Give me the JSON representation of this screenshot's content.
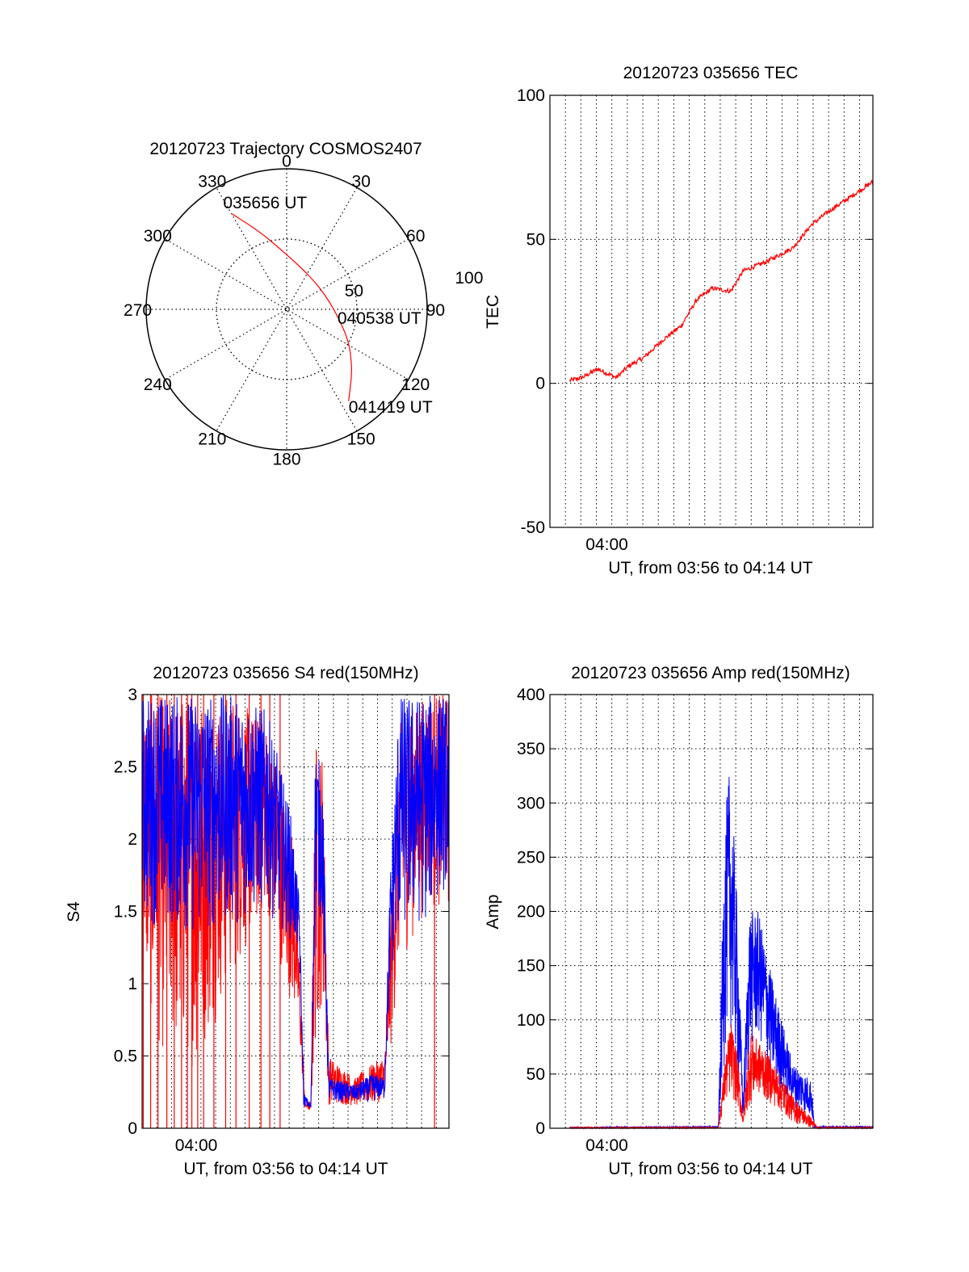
{
  "colors": {
    "red": "#ff0000",
    "blue": "#0000ff",
    "axis": "#000000",
    "grid": "#000000"
  },
  "chart_data": [
    {
      "id": "trajectory",
      "type": "polar",
      "title": "20120723 Trajectory COSMOS2407",
      "angle_labels": [
        "0",
        "30",
        "60",
        "90",
        "120",
        "150",
        "180",
        "210",
        "240",
        "270",
        "300",
        "330"
      ],
      "radius_labels": [
        "50",
        "100"
      ],
      "rlim": [
        0,
        90
      ],
      "grid": true,
      "series": [
        {
          "color": "red",
          "points": [
            {
              "az": 330,
              "zen": 71
            },
            {
              "az": 345,
              "zen": 47
            },
            {
              "az": 50,
              "zen": 25
            },
            {
              "az": 110,
              "zen": 39
            },
            {
              "az": 131,
              "zen": 55
            },
            {
              "az": 146,
              "zen": 71
            }
          ]
        }
      ],
      "annotations": [
        {
          "text": "035656 UT",
          "az": 330,
          "zen": 71
        },
        {
          "text": "040538 UT",
          "az": 110,
          "zen": 39
        },
        {
          "text": "041419 UT",
          "az": 146,
          "zen": 71
        }
      ]
    },
    {
      "id": "tec",
      "type": "line",
      "title": "20120723 035656 TEC",
      "xlabel": "UT, from 03:56 to 04:14 UT",
      "ylabel": "TEC",
      "xlim": [
        "03:56:56",
        "04:14:19"
      ],
      "ylim": [
        -50,
        100
      ],
      "yticks": [
        "-50",
        "0",
        "50",
        "100"
      ],
      "xticks": [
        {
          "label": "04:00",
          "time": "04:00:00"
        }
      ],
      "grid": true,
      "series": [
        {
          "color": "red",
          "points": [
            [
              "03:58:00",
              1
            ],
            [
              "03:58:40",
              2
            ],
            [
              "03:59:30",
              5
            ],
            [
              "04:00:30",
              2
            ],
            [
              "04:01:10",
              6
            ],
            [
              "04:02:00",
              9
            ],
            [
              "04:03:00",
              15
            ],
            [
              "04:04:00",
              20
            ],
            [
              "04:04:50",
              29
            ],
            [
              "04:05:40",
              33
            ],
            [
              "04:06:40",
              32
            ],
            [
              "04:07:20",
              39
            ],
            [
              "04:08:30",
              42
            ],
            [
              "04:10:00",
              47
            ],
            [
              "04:11:00",
              55
            ],
            [
              "04:12:00",
              60
            ],
            [
              "04:13:10",
              65
            ],
            [
              "04:14:19",
              70
            ]
          ]
        }
      ]
    },
    {
      "id": "s4",
      "type": "line",
      "title": "20120723 035656 S4 red(150MHz)",
      "xlabel": "UT, from 03:56 to 04:14 UT",
      "ylabel": "S4",
      "xlim": [
        "03:56:56",
        "04:14:19"
      ],
      "ylim": [
        0,
        3
      ],
      "yticks": [
        "0",
        "0.5",
        "1",
        "1.5",
        "2",
        "2.5",
        "3"
      ],
      "xticks": [
        {
          "label": "04:00",
          "time": "04:00:00"
        }
      ],
      "grid": true,
      "series": [
        {
          "color": "red",
          "envelope": [
            [
              "03:56:56",
              1.0,
              3.0
            ],
            [
              "03:58:00",
              0.5,
              3.0
            ],
            [
              "04:00:00",
              0.4,
              3.0
            ],
            [
              "04:02:00",
              1.0,
              3.0
            ],
            [
              "04:04:00",
              1.5,
              2.8
            ],
            [
              "04:05:30",
              0.8,
              2.0
            ],
            [
              "04:05:50",
              0.6,
              1.2
            ],
            [
              "04:06:10",
              0.11,
              0.2
            ],
            [
              "04:06:30",
              0.12,
              0.18
            ],
            [
              "04:06:45",
              0.5,
              2.7
            ],
            [
              "04:07:10",
              0.9,
              2.6
            ],
            [
              "04:07:30",
              0.16,
              0.5
            ],
            [
              "04:09:00",
              0.15,
              0.35
            ],
            [
              "04:10:00",
              0.15,
              0.45
            ],
            [
              "04:10:40",
              0.2,
              0.5
            ],
            [
              "04:11:00",
              0.5,
              1.5
            ],
            [
              "04:11:30",
              1.1,
              2.8
            ],
            [
              "04:13:00",
              1.5,
              3.0
            ],
            [
              "04:14:19",
              1.5,
              3.0
            ]
          ],
          "dropouts": [
            "03:57:00",
            "03:57:25",
            "03:57:50",
            "03:58:20",
            "03:58:45",
            "03:59:10",
            "03:59:30",
            "03:59:45",
            "04:00:05",
            "04:00:25",
            "04:01:00",
            "04:01:40",
            "04:02:15",
            "04:03:00",
            "04:03:40",
            "04:04:10",
            "04:04:45",
            "04:13:30"
          ]
        },
        {
          "color": "blue",
          "envelope": [
            [
              "03:56:56",
              1.4,
              3.0
            ],
            [
              "03:58:00",
              1.4,
              3.0
            ],
            [
              "04:00:00",
              1.3,
              3.0
            ],
            [
              "04:02:00",
              1.4,
              3.0
            ],
            [
              "04:04:00",
              1.5,
              2.9
            ],
            [
              "04:05:20",
              1.3,
              2.2
            ],
            [
              "04:05:50",
              1.2,
              1.6
            ],
            [
              "04:06:05",
              0.15,
              0.25
            ],
            [
              "04:06:30",
              0.13,
              0.16
            ],
            [
              "04:06:45",
              1.5,
              2.7
            ],
            [
              "04:07:10",
              1.4,
              2.4
            ],
            [
              "04:07:30",
              0.18,
              0.35
            ],
            [
              "04:09:00",
              0.18,
              0.3
            ],
            [
              "04:10:00",
              0.18,
              0.38
            ],
            [
              "04:10:40",
              0.2,
              0.35
            ],
            [
              "04:11:00",
              1.0,
              1.8
            ],
            [
              "04:11:30",
              1.3,
              3.0
            ],
            [
              "04:13:00",
              1.4,
              3.0
            ],
            [
              "04:14:19",
              1.7,
              3.0
            ]
          ]
        }
      ]
    },
    {
      "id": "amp",
      "type": "line",
      "title": "20120723 035656 Amp red(150MHz)",
      "xlabel": "UT, from 03:56 to 04:14 UT",
      "ylabel": "Amp",
      "xlim": [
        "03:56:56",
        "04:14:19"
      ],
      "ylim": [
        0,
        400
      ],
      "yticks": [
        "0",
        "50",
        "100",
        "150",
        "200",
        "250",
        "300",
        "350",
        "400"
      ],
      "xticks": [
        {
          "label": "04:00",
          "time": "04:00:00"
        }
      ],
      "grid": true,
      "series": [
        {
          "color": "red",
          "envelope": [
            [
              "03:58:00",
              0,
              1
            ],
            [
              "04:06:00",
              0,
              1
            ],
            [
              "04:06:20",
              20,
              60
            ],
            [
              "04:06:40",
              30,
              100
            ],
            [
              "04:07:00",
              20,
              70
            ],
            [
              "04:07:20",
              3,
              10
            ],
            [
              "04:07:40",
              20,
              90
            ],
            [
              "04:08:10",
              30,
              80
            ],
            [
              "04:09:00",
              20,
              60
            ],
            [
              "04:10:00",
              5,
              30
            ],
            [
              "04:11:00",
              0,
              10
            ],
            [
              "04:11:20",
              0,
              1
            ],
            [
              "04:14:19",
              0,
              1
            ]
          ]
        },
        {
          "color": "blue",
          "envelope": [
            [
              "03:58:00",
              0,
              1
            ],
            [
              "04:06:00",
              0,
              2
            ],
            [
              "04:06:20",
              60,
              280
            ],
            [
              "04:06:35",
              100,
              330
            ],
            [
              "04:06:55",
              60,
              250
            ],
            [
              "04:07:20",
              5,
              30
            ],
            [
              "04:07:40",
              70,
              200
            ],
            [
              "04:08:10",
              80,
              200
            ],
            [
              "04:09:00",
              40,
              130
            ],
            [
              "04:10:00",
              20,
              60
            ],
            [
              "04:11:00",
              10,
              45
            ],
            [
              "04:11:10",
              0,
              2
            ],
            [
              "04:14:19",
              0,
              2
            ]
          ]
        }
      ]
    }
  ]
}
